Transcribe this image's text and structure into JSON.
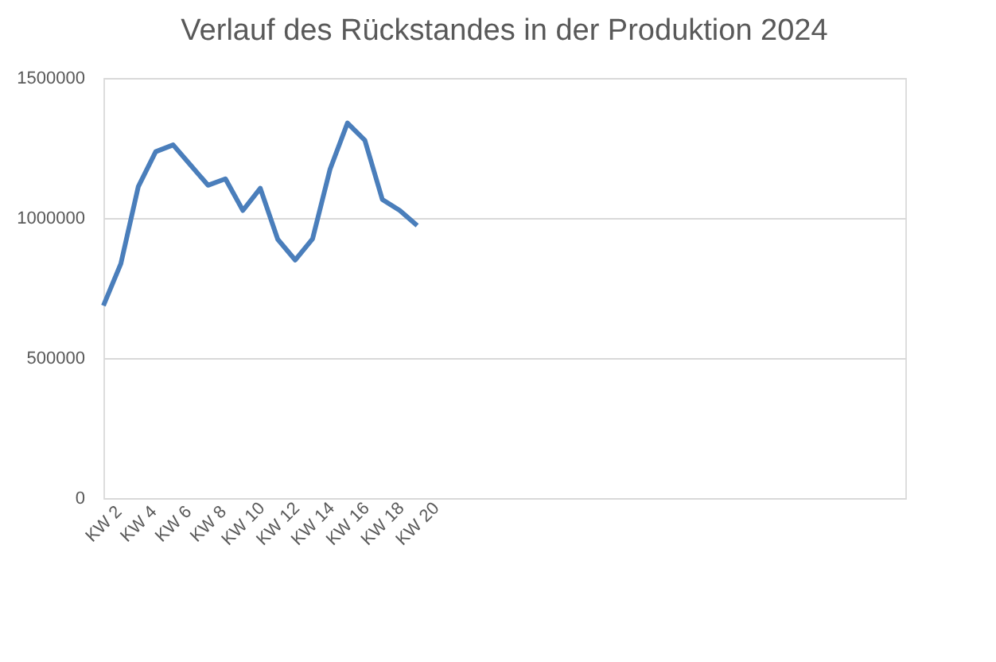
{
  "chart_data": {
    "type": "line",
    "title": "Verlauf des Rückstandes in der Produktion 2024",
    "categories": [
      "KW 2",
      null,
      "KW 4",
      null,
      "KW 6",
      null,
      "KW 8",
      null,
      "KW 10",
      null,
      "KW 12",
      null,
      "KW 14",
      null,
      "KW 16",
      null,
      "KW 18",
      null,
      "KW 20",
      null,
      null,
      null,
      null,
      null,
      null,
      null,
      null,
      null,
      null,
      null,
      null,
      null,
      null,
      null,
      null,
      null,
      null,
      null,
      null,
      null,
      null,
      null,
      null,
      null,
      null,
      null,
      null
    ],
    "series": [
      {
        "color": "#4a7ebb",
        "values": [
          687000,
          837000,
          1112000,
          1237000,
          1261000,
          1189000,
          1117000,
          1140000,
          1027000,
          1106000,
          924000,
          850000,
          926000,
          1174000,
          1339000,
          1277000,
          1066000,
          1027000,
          973000,
          null,
          null,
          null,
          null,
          null,
          null,
          null,
          null,
          null,
          null,
          null,
          null,
          null,
          null,
          null,
          null,
          null,
          null,
          null,
          null,
          null,
          null,
          null,
          null,
          null,
          null,
          null,
          null
        ]
      }
    ],
    "ylim": [
      0,
      1500000
    ],
    "yticks": [
      0,
      500000,
      1000000,
      1500000
    ],
    "grid": "y",
    "marker": "none",
    "line_style": "solid"
  }
}
